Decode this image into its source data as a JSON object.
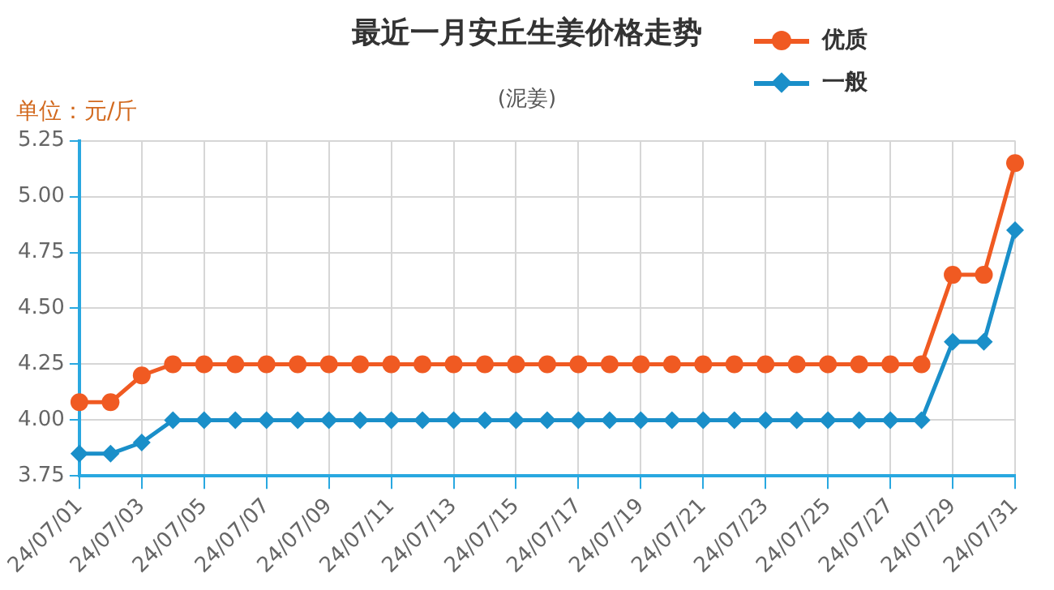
{
  "chart_data": {
    "type": "line",
    "title": "最近一月安丘生姜价格走势",
    "subtitle": "(泥姜)",
    "ylabel": "单位：元/斤",
    "categories": [
      "24/07/01",
      null,
      "24/07/03",
      null,
      "24/07/05",
      null,
      "24/07/07",
      null,
      "24/07/09",
      null,
      "24/07/11",
      null,
      "24/07/13",
      null,
      "24/07/15",
      null,
      "24/07/17",
      null,
      "24/07/19",
      null,
      "24/07/21",
      null,
      "24/07/23",
      null,
      "24/07/25",
      null,
      "24/07/27",
      null,
      "24/07/29",
      null,
      "24/07/31"
    ],
    "series": [
      {
        "name": "优质",
        "color": "#f05a22",
        "marker": "circle",
        "values": [
          4.08,
          4.08,
          4.2,
          4.25,
          4.25,
          4.25,
          4.25,
          4.25,
          4.25,
          4.25,
          4.25,
          4.25,
          4.25,
          4.25,
          4.25,
          4.25,
          4.25,
          4.25,
          4.25,
          4.25,
          4.25,
          4.25,
          4.25,
          4.25,
          4.25,
          4.25,
          4.25,
          4.25,
          4.65,
          4.65,
          5.15
        ]
      },
      {
        "name": "一般",
        "color": "#1a8fc9",
        "marker": "diamond",
        "values": [
          3.85,
          3.85,
          3.9,
          4.0,
          4.0,
          4.0,
          4.0,
          4.0,
          4.0,
          4.0,
          4.0,
          4.0,
          4.0,
          4.0,
          4.0,
          4.0,
          4.0,
          4.0,
          4.0,
          4.0,
          4.0,
          4.0,
          4.0,
          4.0,
          4.0,
          4.0,
          4.0,
          4.0,
          4.35,
          4.35,
          4.85
        ]
      }
    ],
    "ylim": [
      3.75,
      5.25
    ],
    "yticks": [
      3.75,
      {
        "value": 4,
        "label": "4.00"
      },
      4.25,
      {
        "value": 4.5,
        "label": "4.50"
      },
      4.75,
      {
        "value": 5,
        "label": "5.00"
      },
      5.25
    ],
    "grid": true,
    "legend": "top right"
  }
}
